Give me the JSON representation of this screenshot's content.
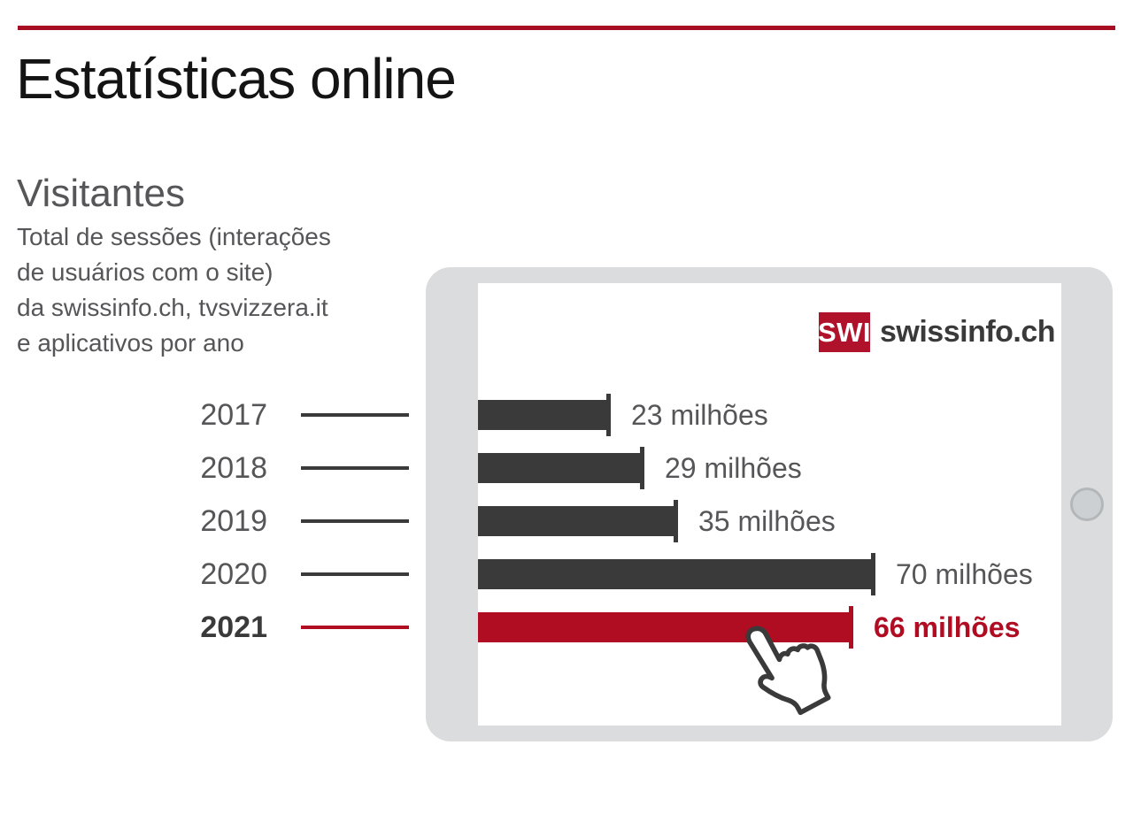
{
  "page": {
    "title": "Estatísticas online",
    "section_title": "Visitantes",
    "description": "Total de sessões (interações\nde usuários com o site)\nda swissinfo.ch, tvsvizzera.it\ne aplicativos por ano"
  },
  "logo": {
    "box_text": "SWI",
    "brand_text": "swissinfo.ch"
  },
  "colors": {
    "accent_red": "#b00d23",
    "top_rule_red": "#a60d22",
    "logo_red": "#b0122b",
    "bar_dark": "#3a3a3a",
    "text_gray": "#565659",
    "tablet_frame": "#dbdcdd"
  },
  "chart_data": {
    "type": "bar",
    "orientation": "horizontal",
    "title": "Visitantes",
    "categories": [
      "2017",
      "2018",
      "2019",
      "2020",
      "2021"
    ],
    "values": [
      23,
      29,
      35,
      70,
      66
    ],
    "value_labels": [
      "23 milhões",
      "29 milhões",
      "35 milhões",
      "70 milhões",
      "66 milhões"
    ],
    "unit": "milhões",
    "xlim": [
      0,
      70
    ],
    "highlight_category": "2021",
    "grid": false,
    "legend": false
  }
}
